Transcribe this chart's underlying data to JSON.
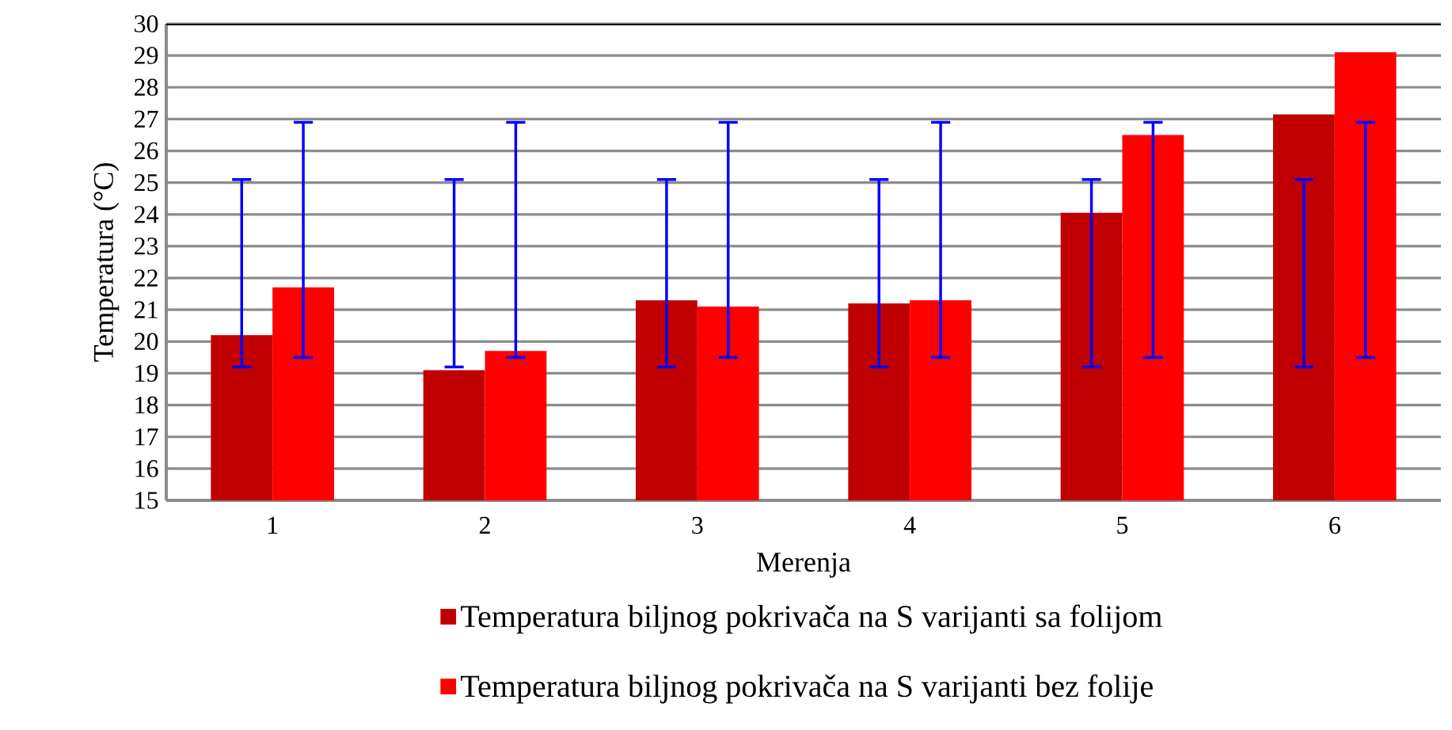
{
  "chart_data": {
    "type": "bar",
    "xlabel": "Merenja",
    "ylabel": "Temperatura (°C)",
    "categories": [
      "1",
      "2",
      "3",
      "4",
      "5",
      "6"
    ],
    "series": [
      {
        "name": "Temperatura biljnog pokrivača na S varijanti sa folijom",
        "color": "#c00000",
        "values": [
          20.2,
          19.1,
          21.3,
          21.2,
          24.05,
          27.15
        ],
        "errors": [
          [
            19.2,
            25.1
          ],
          [
            19.2,
            25.1
          ],
          [
            19.2,
            25.1
          ],
          [
            19.2,
            25.1
          ],
          [
            19.2,
            25.1
          ],
          [
            19.2,
            25.1
          ]
        ]
      },
      {
        "name": "Temperatura biljnog pokrivača na S varijanti bez folije",
        "color": "#ff0000",
        "values": [
          21.7,
          19.7,
          21.1,
          21.3,
          26.5,
          29.1
        ],
        "errors": [
          [
            19.5,
            26.9
          ],
          [
            19.5,
            26.9
          ],
          [
            19.5,
            26.9
          ],
          [
            19.5,
            26.9
          ],
          [
            19.5,
            26.9
          ],
          [
            19.5,
            26.9
          ]
        ]
      }
    ],
    "ylim": [
      15,
      30
    ],
    "yticks": [
      15,
      16,
      17,
      18,
      19,
      20,
      21,
      22,
      23,
      24,
      25,
      26,
      27,
      28,
      29,
      30
    ],
    "grid": "y",
    "legend": "bottom"
  }
}
